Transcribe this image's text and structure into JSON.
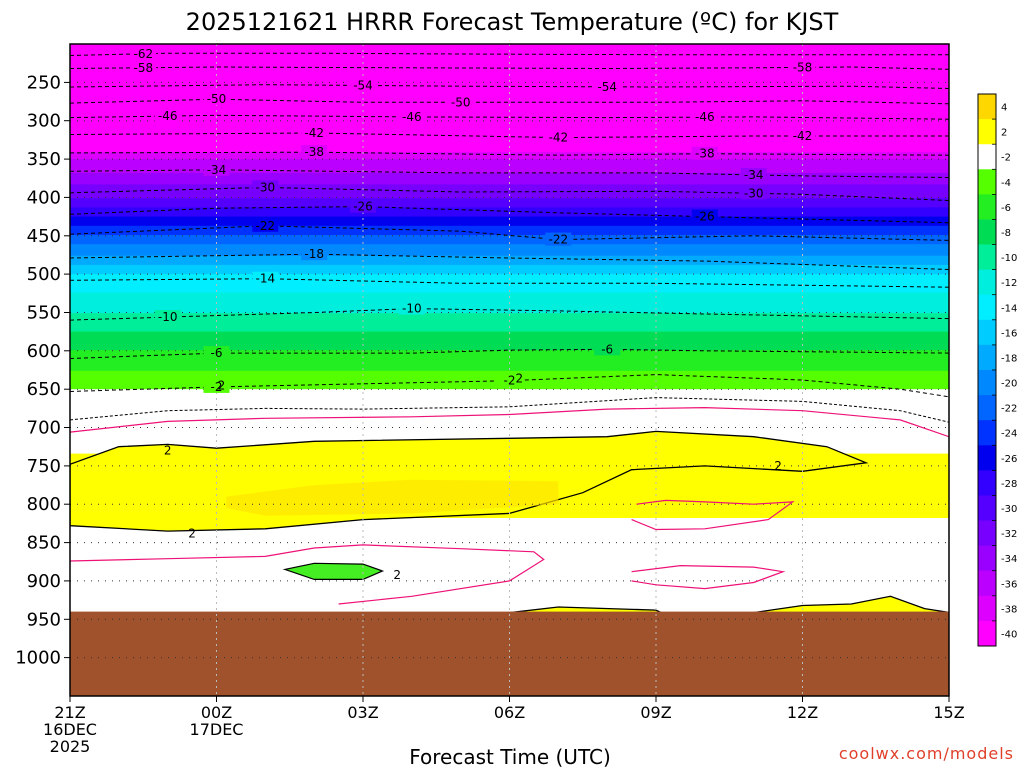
{
  "chart_data": {
    "type": "heatmap",
    "title": "2025121621 HRRR Forecast Temperature (ºC) for KJST",
    "xlabel": "Forecast Time (UTC)",
    "ylabel": "",
    "credit": "coolwx.com/models",
    "x_ticks": [
      {
        "hour": 0,
        "lines": [
          "21Z",
          "16DEC",
          "2025"
        ]
      },
      {
        "hour": 3,
        "lines": [
          "00Z",
          "17DEC"
        ]
      },
      {
        "hour": 6,
        "lines": [
          "03Z"
        ]
      },
      {
        "hour": 9,
        "lines": [
          "06Z"
        ]
      },
      {
        "hour": 12,
        "lines": [
          "09Z"
        ]
      },
      {
        "hour": 15,
        "lines": [
          "12Z"
        ]
      },
      {
        "hour": 18,
        "lines": [
          "15Z"
        ]
      }
    ],
    "xlim": [
      0,
      18
    ],
    "y_ticks": [
      250,
      300,
      350,
      400,
      450,
      500,
      550,
      600,
      650,
      700,
      750,
      800,
      850,
      900,
      950,
      1000
    ],
    "ylim": [
      200,
      1050
    ],
    "ground_top_hpa": 940,
    "temperature_profile": [
      {
        "p": 200,
        "t": -63
      },
      {
        "p": 250,
        "t": -56
      },
      {
        "p": 300,
        "t": -46
      },
      {
        "p": 320,
        "t": -42
      },
      {
        "p": 340,
        "t": -38
      },
      {
        "p": 350,
        "t": -36
      },
      {
        "p": 400,
        "t": -30
      },
      {
        "p": 450,
        "t": -22
      },
      {
        "p": 500,
        "t": -14
      },
      {
        "p": 550,
        "t": -10
      },
      {
        "p": 600,
        "t": -6
      },
      {
        "p": 650,
        "t": -2
      },
      {
        "p": 700,
        "t": 0
      },
      {
        "p": 750,
        "t": 3
      },
      {
        "p": 800,
        "t": 3
      },
      {
        "p": 850,
        "t": 0
      },
      {
        "p": 900,
        "t": 0
      },
      {
        "p": 950,
        "t": 1
      }
    ],
    "colorbar": {
      "labels": [
        "4",
        "2",
        "-2",
        "-4",
        "-6",
        "-8",
        "-10",
        "-12",
        "-14",
        "-16",
        "-18",
        "-20",
        "-22",
        "-24",
        "-26",
        "-28",
        "-30",
        "-32",
        "-34",
        "-36",
        "-38",
        "-40"
      ],
      "colors": [
        "#ffd700",
        "#ffff00",
        "#ffffff",
        "#55ff00",
        "#22ee22",
        "#00dd55",
        "#00ee99",
        "#00eedd",
        "#00eeff",
        "#00ccff",
        "#00aaff",
        "#0088ff",
        "#0066ff",
        "#0033ff",
        "#0000ee",
        "#3300ff",
        "#5500ff",
        "#7700ff",
        "#9900ff",
        "#bb00ff",
        "#dd00ff",
        "#ff00ff"
      ]
    },
    "contours": [
      {
        "label": "-62",
        "pts": [
          [
            0,
            215
          ],
          [
            2,
            212
          ],
          [
            5,
            212
          ],
          [
            8,
            213
          ],
          [
            12,
            214
          ],
          [
            15,
            214
          ],
          [
            18,
            214
          ]
        ],
        "labels_at": [
          1.5
        ]
      },
      {
        "label": "-58",
        "pts": [
          [
            0,
            232
          ],
          [
            3,
            230
          ],
          [
            7,
            231
          ],
          [
            11,
            232
          ],
          [
            14,
            231
          ],
          [
            16,
            230
          ],
          [
            18,
            233
          ]
        ],
        "labels_at": [
          1.5,
          15
        ]
      },
      {
        "label": "-54",
        "pts": [
          [
            0,
            256
          ],
          [
            4,
            253
          ],
          [
            8,
            255
          ],
          [
            12,
            256
          ],
          [
            16,
            255
          ],
          [
            18,
            258
          ]
        ],
        "labels_at": [
          6,
          11
        ]
      },
      {
        "label": "-50",
        "pts": [
          [
            0,
            277
          ],
          [
            3,
            272
          ],
          [
            6,
            276
          ],
          [
            8,
            276
          ],
          [
            12,
            276
          ],
          [
            15,
            274
          ],
          [
            18,
            278
          ]
        ],
        "labels_at": [
          3,
          8
        ]
      },
      {
        "label": "-46",
        "pts": [
          [
            0,
            296
          ],
          [
            3,
            293
          ],
          [
            7,
            295
          ],
          [
            11,
            296
          ],
          [
            14,
            295
          ],
          [
            18,
            298
          ]
        ],
        "labels_at": [
          2,
          7,
          13
        ]
      },
      {
        "label": "-42",
        "pts": [
          [
            0,
            318
          ],
          [
            5,
            316
          ],
          [
            10,
            322
          ],
          [
            14,
            320
          ],
          [
            18,
            320
          ]
        ],
        "labels_at": [
          5,
          10,
          15
        ]
      },
      {
        "label": "-38",
        "pts": [
          [
            0,
            342
          ],
          [
            5,
            341
          ],
          [
            10,
            345
          ],
          [
            13,
            343
          ],
          [
            18,
            345
          ]
        ],
        "labels_at": [
          5,
          13
        ]
      },
      {
        "label": "-34",
        "pts": [
          [
            0,
            366
          ],
          [
            3,
            364
          ],
          [
            8,
            368
          ],
          [
            12,
            368
          ],
          [
            15,
            372
          ],
          [
            18,
            374
          ]
        ],
        "labels_at": [
          3,
          14
        ]
      },
      {
        "label": "-30",
        "pts": [
          [
            0,
            394
          ],
          [
            4,
            387
          ],
          [
            8,
            393
          ],
          [
            12,
            392
          ],
          [
            15,
            396
          ],
          [
            18,
            404
          ]
        ],
        "labels_at": [
          4,
          14
        ]
      },
      {
        "label": "-26",
        "pts": [
          [
            0,
            422
          ],
          [
            3,
            414
          ],
          [
            6,
            412
          ],
          [
            10,
            420
          ],
          [
            13,
            425
          ],
          [
            18,
            433
          ]
        ],
        "labels_at": [
          6,
          13
        ]
      },
      {
        "label": "-22",
        "pts": [
          [
            0,
            448
          ],
          [
            4,
            437
          ],
          [
            8,
            444
          ],
          [
            10,
            455
          ],
          [
            14,
            450
          ],
          [
            18,
            456
          ]
        ],
        "labels_at": [
          4,
          10
        ]
      },
      {
        "label": "-18",
        "pts": [
          [
            0,
            479
          ],
          [
            3,
            476
          ],
          [
            5,
            474
          ],
          [
            9,
            479
          ],
          [
            13,
            483
          ],
          [
            18,
            494
          ]
        ],
        "labels_at": [
          5
        ]
      },
      {
        "label": "-14",
        "pts": [
          [
            0,
            508
          ],
          [
            4,
            506
          ],
          [
            8,
            512
          ],
          [
            12,
            512
          ],
          [
            18,
            517
          ]
        ],
        "labels_at": [
          4
        ]
      },
      {
        "label": "-10",
        "pts": [
          [
            0,
            560
          ],
          [
            2,
            556
          ],
          [
            5,
            550
          ],
          [
            7,
            545
          ],
          [
            10,
            548
          ],
          [
            13,
            552
          ],
          [
            18,
            558
          ]
        ],
        "labels_at": [
          2,
          7
        ]
      },
      {
        "label": "-6",
        "pts": [
          [
            0,
            610
          ],
          [
            3,
            603
          ],
          [
            7,
            603
          ],
          [
            9,
            599
          ],
          [
            11,
            598
          ],
          [
            13,
            600
          ],
          [
            18,
            603
          ]
        ],
        "labels_at": [
          3,
          11
        ]
      },
      {
        "label": "-2",
        "pts": [
          [
            0,
            653
          ],
          [
            3,
            647
          ],
          [
            6,
            643
          ],
          [
            9,
            639
          ],
          [
            12,
            631
          ],
          [
            15,
            638
          ],
          [
            17,
            650
          ],
          [
            18,
            660
          ]
        ],
        "labels_at": [
          3,
          9
        ]
      }
    ],
    "freezing_line": [
      [
        0,
        690
      ],
      [
        2,
        678
      ],
      [
        4,
        675
      ],
      [
        6,
        676
      ],
      [
        9,
        673
      ],
      [
        12,
        661
      ],
      [
        15,
        666
      ],
      [
        17,
        678
      ],
      [
        18,
        693
      ]
    ],
    "warm_layers": [
      {
        "pts": [
          [
            0,
            748
          ],
          [
            1,
            725
          ],
          [
            2,
            722
          ],
          [
            3,
            727
          ],
          [
            5,
            718
          ],
          [
            9,
            714
          ],
          [
            11,
            712
          ],
          [
            12,
            705
          ],
          [
            14,
            712
          ],
          [
            15.5,
            725
          ],
          [
            16.3,
            746
          ],
          [
            15,
            757
          ],
          [
            13,
            750
          ],
          [
            11.5,
            755
          ],
          [
            10.5,
            785
          ],
          [
            9,
            812
          ],
          [
            6,
            820
          ],
          [
            4,
            832
          ],
          [
            2,
            835
          ],
          [
            0,
            828
          ]
        ]
      },
      {
        "pts": [
          [
            8.9,
            942
          ],
          [
            10,
            934
          ],
          [
            12,
            938
          ],
          [
            12.2,
            944
          ]
        ]
      },
      {
        "pts": [
          [
            13.7,
            944
          ],
          [
            15,
            932
          ],
          [
            16,
            930
          ],
          [
            16.8,
            920
          ],
          [
            17.5,
            936
          ],
          [
            18,
            941
          ]
        ]
      }
    ],
    "warm_core": {
      "pts": [
        [
          3.2,
          790
        ],
        [
          5,
          775
        ],
        [
          7,
          768
        ],
        [
          10,
          770
        ],
        [
          10,
          800
        ],
        [
          7,
          812
        ],
        [
          4,
          815
        ],
        [
          3.2,
          805
        ]
      ]
    },
    "cold_pocket": {
      "pts": [
        [
          4.4,
          885
        ],
        [
          5,
          877
        ],
        [
          6,
          878
        ],
        [
          6.4,
          887
        ],
        [
          6,
          898
        ],
        [
          5,
          898
        ]
      ]
    },
    "pink_contours": [
      [
        [
          0,
          706
        ],
        [
          2,
          692
        ],
        [
          4,
          688
        ],
        [
          7,
          686
        ],
        [
          9,
          683
        ],
        [
          11,
          676
        ],
        [
          13,
          674
        ],
        [
          15,
          678
        ],
        [
          17,
          690
        ],
        [
          18,
          712
        ]
      ],
      [
        [
          0,
          874
        ],
        [
          2,
          871
        ],
        [
          4,
          868
        ],
        [
          5,
          857
        ],
        [
          6,
          853
        ],
        [
          8,
          858
        ],
        [
          9.5,
          862
        ],
        [
          9.7,
          872
        ],
        [
          9,
          900
        ],
        [
          7,
          920
        ],
        [
          5.5,
          930
        ]
      ],
      [
        [
          11.6,
          800
        ],
        [
          12.2,
          795
        ],
        [
          13,
          797
        ],
        [
          14,
          800
        ],
        [
          14.8,
          797
        ],
        [
          14.3,
          820
        ],
        [
          13,
          832
        ],
        [
          12,
          833
        ],
        [
          11.5,
          820
        ]
      ],
      [
        [
          11.5,
          888
        ],
        [
          12.5,
          880
        ],
        [
          14,
          882
        ],
        [
          14.6,
          888
        ],
        [
          14,
          902
        ],
        [
          13,
          910
        ],
        [
          12,
          905
        ],
        [
          11.5,
          900
        ]
      ]
    ],
    "inline_labels": [
      {
        "text": "2",
        "hour": 2,
        "p": 730
      },
      {
        "text": "2",
        "hour": 2.5,
        "p": 838
      },
      {
        "text": "2",
        "hour": 6.7,
        "p": 892
      },
      {
        "text": "2",
        "hour": 9.2,
        "p": 636
      },
      {
        "text": "2",
        "hour": 14.5,
        "p": 750
      },
      {
        "text": "2",
        "hour": 3.1,
        "p": 645
      }
    ]
  }
}
